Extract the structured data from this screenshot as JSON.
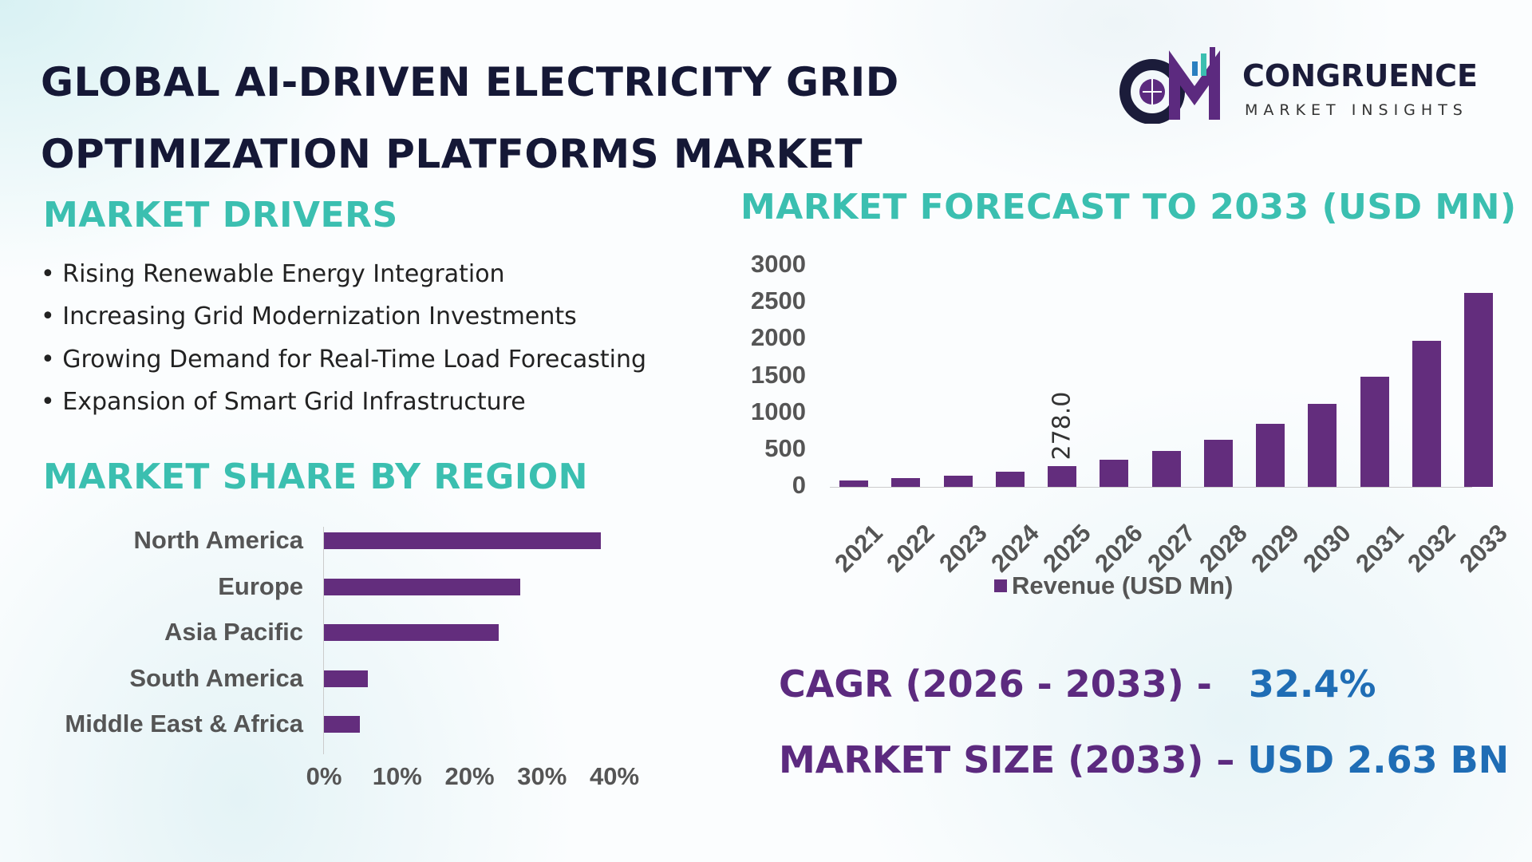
{
  "title": {
    "line1": "GLOBAL AI-DRIVEN ELECTRICITY GRID",
    "line2": "OPTIMIZATION PLATFORMS MARKET"
  },
  "logo": {
    "name": "CONGRUENCE",
    "tagline": "MARKET INSIGHTS",
    "mark": "CM"
  },
  "drivers": {
    "heading": "MARKET DRIVERS",
    "items": [
      "Rising Renewable Energy Integration",
      "Increasing Grid Modernization Investments",
      "Growing Demand for Real-Time Load Forecasting",
      "Expansion of Smart Grid Infrastructure"
    ]
  },
  "colors": {
    "bar": "#632d7d",
    "heading": "#3bbfb0",
    "kpi_label": "#5c2a7f",
    "kpi_value": "#1f6db5",
    "title": "#151836"
  },
  "chart_data": [
    {
      "type": "bar",
      "orientation": "horizontal",
      "title": "MARKET SHARE BY REGION",
      "categories": [
        "North America",
        "Europe",
        "Asia Pacific",
        "South America",
        "Middle East & Africa"
      ],
      "values": [
        38.2,
        27.1,
        24.1,
        6.1,
        5.0
      ],
      "unit": "%",
      "xlim": [
        0,
        40
      ],
      "xticks": [
        "0%",
        "10%",
        "20%",
        "30%",
        "40%"
      ],
      "grid": false
    },
    {
      "type": "bar",
      "title": "MARKET FORECAST TO 2033 (USD MN)",
      "categories": [
        "2021",
        "2022",
        "2023",
        "2024",
        "2025",
        "2026",
        "2027",
        "2028",
        "2029",
        "2030",
        "2031",
        "2032",
        "2033"
      ],
      "series": [
        {
          "name": "Revenue (USD Mn)",
          "values": [
            87,
            119,
            152,
            206,
            278,
            369,
            488,
            640,
            857,
            1128,
            1497,
            1985,
            2630
          ]
        }
      ],
      "data_labels": {
        "2025": "278.0"
      },
      "ylim": [
        0,
        3000
      ],
      "yticks": [
        "0",
        "500",
        "1000",
        "1500",
        "2000",
        "2500",
        "3000"
      ],
      "legend": "bottom",
      "grid": false
    }
  ],
  "kpis": {
    "cagr_label": "CAGR (2026 - 2033) -",
    "cagr_value": "32.4%",
    "size_label": "MARKET SIZE (2033) –",
    "size_value": "USD 2.63 BN"
  }
}
